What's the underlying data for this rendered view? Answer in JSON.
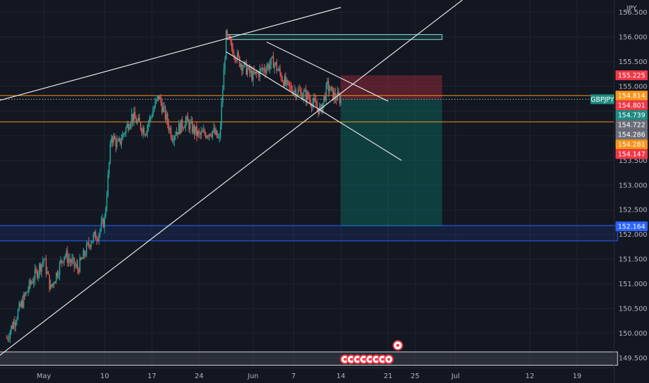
{
  "chart_data": {
    "type": "candlestick",
    "symbol": "GBPJPY",
    "currency": "JPY",
    "ylim": [
      149.3,
      156.75
    ],
    "y_ticks": [
      "156.500",
      "156.000",
      "155.500",
      "155.000",
      "154.500",
      "154.000",
      "153.500",
      "153.000",
      "152.500",
      "152.000",
      "151.500",
      "151.000",
      "150.500",
      "150.000",
      "149.500"
    ],
    "y_tick_values": [
      156.5,
      156.0,
      155.5,
      155.0,
      154.5,
      154.0,
      153.5,
      153.0,
      152.5,
      152.0,
      151.5,
      151.0,
      150.5,
      150.0,
      149.5
    ],
    "x_ticks": [
      "May",
      "10",
      "17",
      "24",
      "Jun",
      "7",
      "14",
      "21",
      "25",
      "Jul",
      "12",
      "19"
    ],
    "x_tick_days": [
      1,
      10,
      17,
      24,
      32,
      38,
      45,
      52,
      56,
      62,
      73,
      80
    ],
    "xlim_days": [
      -5.5,
      85.5
    ],
    "key_points": [
      {
        "day": -4.5,
        "price": 149.9
      },
      {
        "day": -1,
        "price": 151.0
      },
      {
        "day": 1,
        "price": 151.5
      },
      {
        "day": 2,
        "price": 150.9
      },
      {
        "day": 4,
        "price": 151.6
      },
      {
        "day": 6,
        "price": 151.3
      },
      {
        "day": 8,
        "price": 151.9
      },
      {
        "day": 9,
        "price": 152.0
      },
      {
        "day": 10,
        "price": 152.3
      },
      {
        "day": 11,
        "price": 154.0
      },
      {
        "day": 12,
        "price": 153.8
      },
      {
        "day": 14,
        "price": 154.4
      },
      {
        "day": 16,
        "price": 154.1
      },
      {
        "day": 18,
        "price": 154.8
      },
      {
        "day": 20,
        "price": 154.0
      },
      {
        "day": 22,
        "price": 154.3
      },
      {
        "day": 24,
        "price": 154.0
      },
      {
        "day": 26,
        "price": 154.1
      },
      {
        "day": 27,
        "price": 153.9
      },
      {
        "day": 28,
        "price": 156.0
      },
      {
        "day": 30,
        "price": 155.5
      },
      {
        "day": 32,
        "price": 155.2
      },
      {
        "day": 35,
        "price": 155.5
      },
      {
        "day": 37,
        "price": 155.0
      },
      {
        "day": 40,
        "price": 154.8
      },
      {
        "day": 42,
        "price": 154.5
      },
      {
        "day": 43,
        "price": 155.0
      },
      {
        "day": 44,
        "price": 154.8
      },
      {
        "day": 45,
        "price": 154.74
      }
    ],
    "price_labels": [
      {
        "value": 155.225,
        "text": "155.225",
        "color": "#f23645"
      },
      {
        "value": 154.814,
        "text": "154.814",
        "color": "#f7931a"
      },
      {
        "value": 154.801,
        "text": "154.801",
        "color": "#f23645"
      },
      {
        "value": 154.739,
        "text": "154.739",
        "color": "#1e8b80"
      },
      {
        "value": 154.722,
        "text": "154.722",
        "color": "#6b6e78"
      },
      {
        "value": 154.286,
        "text": "154.286",
        "color": "#6b6e78"
      },
      {
        "value": 154.281,
        "text": "154.281",
        "color": "#f7931a"
      },
      {
        "value": 154.147,
        "text": "154.147",
        "color": "#f23645"
      },
      {
        "value": 152.164,
        "text": "152.164",
        "color": "#2962ff"
      }
    ],
    "symbol_label": "GBPJPY",
    "horizontal_lines": [
      {
        "value": 154.814,
        "color": "#f7931a"
      },
      {
        "value": 154.281,
        "color": "#f7931a"
      },
      {
        "value": 154.739,
        "color": "#8a8a8a",
        "dashed": true
      }
    ],
    "zones": [
      {
        "from_day": -6,
        "to_day": 86,
        "low": 151.87,
        "high": 152.18,
        "color": "#2962ff"
      },
      {
        "from_day": -6,
        "to_day": 86,
        "low": 149.35,
        "high": 149.62,
        "color": "#d1d4dc"
      }
    ],
    "position": {
      "from_day": 45,
      "to_day": 60,
      "entry": 154.739,
      "stop": 155.225,
      "target": 152.164
    },
    "trendlines": [
      {
        "points": [
          [
            -6,
            154.7
          ],
          [
            45,
            156.6
          ]
        ]
      },
      {
        "points": [
          [
            -6,
            149.5
          ],
          [
            63,
            156.75
          ]
        ]
      },
      {
        "points": [
          [
            28,
            155.7
          ],
          [
            54,
            153.5
          ]
        ]
      },
      {
        "points": [
          [
            34,
            155.9
          ],
          [
            52,
            154.7
          ]
        ]
      }
    ],
    "top_box": {
      "from_day": 28,
      "to_day": 60,
      "low": 155.95,
      "high": 156.05
    },
    "events": {
      "day": 52,
      "count": 8
    }
  },
  "colors": {
    "bg": "#131722",
    "grid": "#1f2430",
    "up": "#26a69a",
    "down": "#ef5350",
    "axis_text": "#b2b5be"
  }
}
